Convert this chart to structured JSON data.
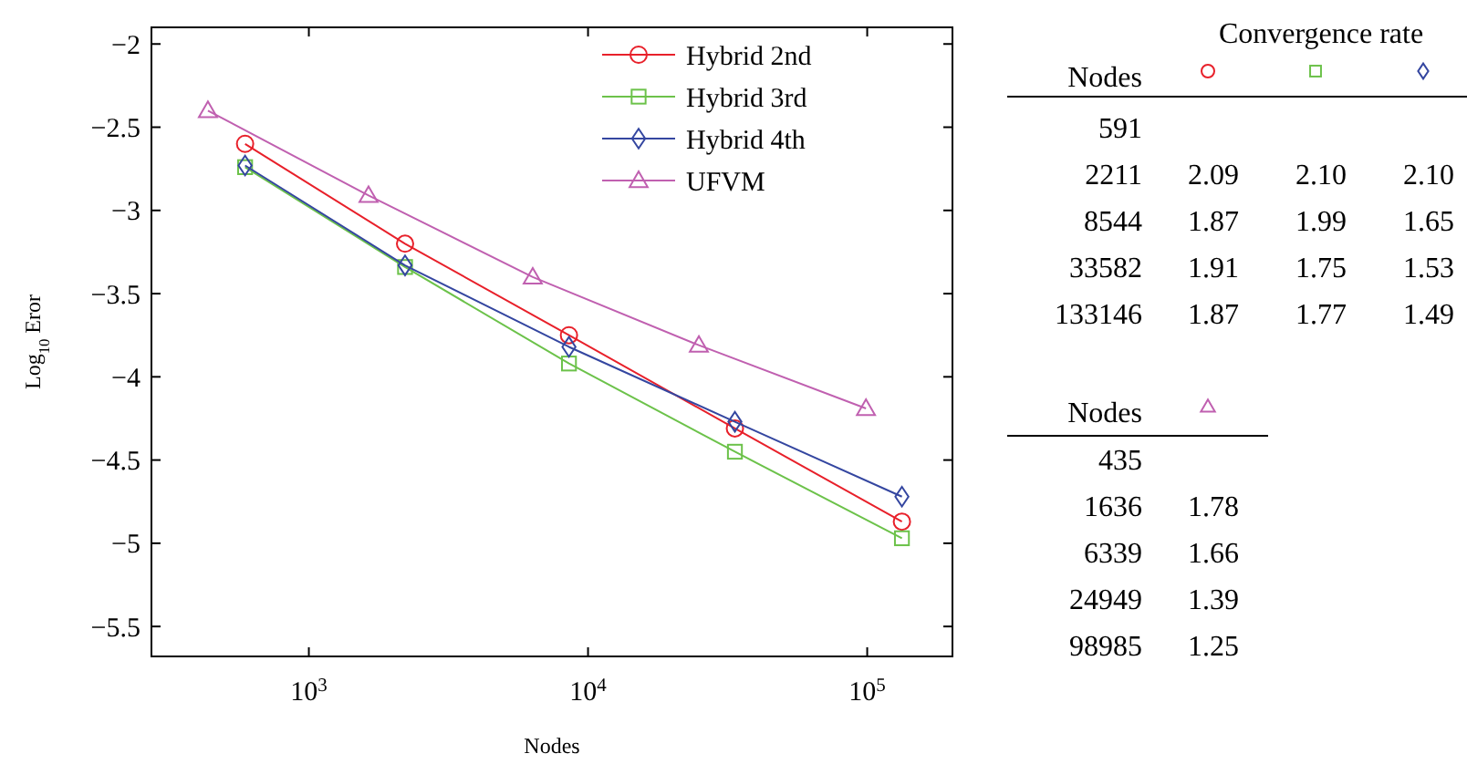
{
  "chart_data": [
    {
      "type": "line",
      "xlabel": "Nodes",
      "ylabel": "Log$_{10}$ Eror",
      "log": "x",
      "xlim": [
        273,
        202000
      ],
      "ylim": [
        -5.68,
        -1.9
      ],
      "xticks": [
        {
          "value": 1000,
          "label": "10$^{3}$"
        },
        {
          "value": 10000,
          "label": "10$^{4}$"
        },
        {
          "value": 100000,
          "label": "10$^{5}$"
        }
      ],
      "yticks": [
        -5.5,
        -5,
        -4.5,
        -4,
        -3.5,
        -3,
        -2.5,
        -2
      ],
      "grid": false,
      "legend": "top right",
      "line_style": "solid",
      "series": [
        {
          "name": "Hybrid 2nd",
          "color": "#e8202a",
          "marker": "circle",
          "x": [
            591,
            2211,
            8544,
            33582,
            133146
          ],
          "values": [
            -2.6,
            -3.2,
            -3.75,
            -4.31,
            -4.87
          ]
        },
        {
          "name": "Hybrid 3rd",
          "color": "#6cc24a",
          "marker": "square",
          "x": [
            591,
            2211,
            8544,
            33582,
            133146
          ],
          "values": [
            -2.74,
            -3.34,
            -3.92,
            -4.45,
            -4.97
          ]
        },
        {
          "name": "Hybrid 4th",
          "color": "#3446a0",
          "marker": "diamond",
          "x": [
            591,
            2211,
            8544,
            33582,
            133146
          ],
          "values": [
            -2.73,
            -3.33,
            -3.82,
            -4.27,
            -4.72
          ]
        },
        {
          "name": "UFVM",
          "color": "#c060b0",
          "marker": "triangle",
          "x": [
            435,
            1636,
            6339,
            24949,
            98985
          ],
          "values": [
            -2.4,
            -2.91,
            -3.4,
            -3.81,
            -4.19
          ]
        }
      ]
    },
    {
      "type": "other",
      "title": "Convergence rate",
      "ylabel": "Nodes",
      "categories": [
        null,
        null,
        null
      ],
      "y_categories": [
        "591",
        "2211",
        "8544",
        "33582",
        "133146"
      ],
      "cells": [
        [
          null,
          null,
          null
        ],
        [
          "2.09",
          "2.10",
          "2.10"
        ],
        [
          "1.87",
          "1.99",
          "1.65"
        ],
        [
          "1.91",
          "1.75",
          "1.53"
        ],
        [
          "1.87",
          "1.77",
          "1.49"
        ]
      ]
    },
    {
      "type": "other",
      "ylabel": "Nodes",
      "categories": [
        null
      ],
      "y_categories": [
        "435",
        "1636",
        "6339",
        "24949",
        "98985"
      ],
      "cells": [
        [
          null
        ],
        [
          "1.78"
        ],
        [
          "1.66"
        ],
        [
          "1.39"
        ],
        [
          "1.25"
        ]
      ]
    }
  ]
}
